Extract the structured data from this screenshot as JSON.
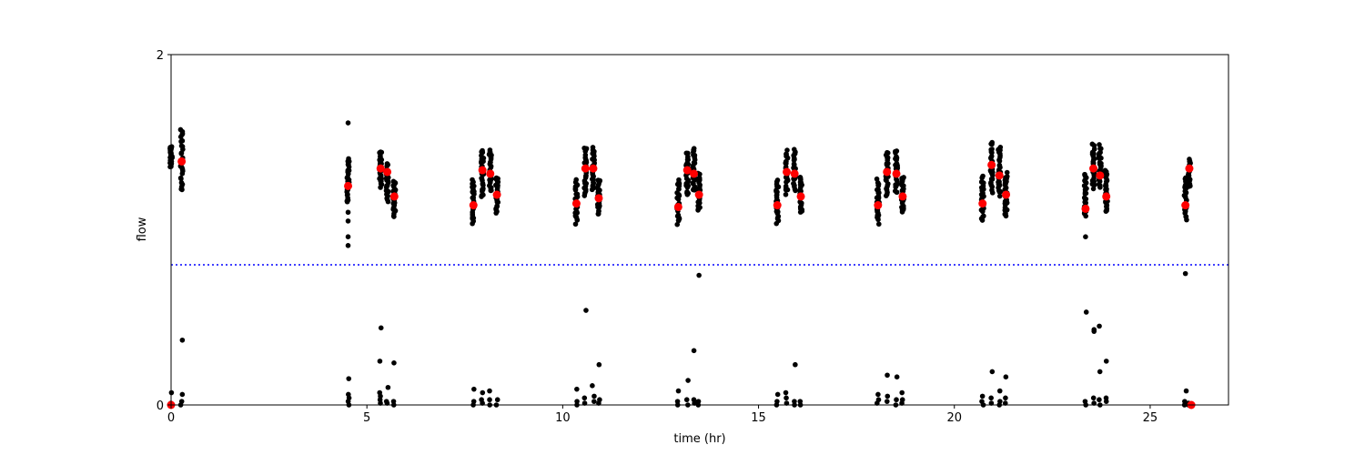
{
  "chart_data": {
    "type": "scatter",
    "xlabel": "time (hr)",
    "ylabel": "flow",
    "xlim": [
      0,
      27
    ],
    "ylim": [
      0,
      2
    ],
    "x_ticks": [
      0,
      5,
      10,
      15,
      20,
      25
    ],
    "y_ticks": [
      0,
      2
    ],
    "grid": false,
    "threshold_line": {
      "y": 0.8,
      "style": "dotted",
      "color": "#0000ff"
    },
    "colors": {
      "raw": "#000000",
      "mean": "#ff0000",
      "threshold": "#0000ff"
    },
    "clusters": [
      {
        "x": 0.0,
        "y": 1.42,
        "spread": 0.06,
        "low": [
          0.0,
          0.01,
          0.07
        ],
        "mean": 0.0
      },
      {
        "x": 0.27,
        "y": 1.4,
        "spread": 0.18,
        "low": [
          0.0,
          0.02,
          0.06,
          0.37
        ],
        "mean": 1.39
      },
      {
        "x": 4.52,
        "y": 1.28,
        "spread": 0.12,
        "low": [
          0.0,
          0.02,
          0.04,
          0.06,
          0.15
        ],
        "high": [
          1.61,
          0.91,
          0.96,
          1.05,
          1.1
        ],
        "mean": 1.25
      },
      {
        "x": 5.35,
        "y": 1.35,
        "spread": 0.1,
        "low": [
          0.01,
          0.03,
          0.05,
          0.07,
          0.25,
          0.44
        ],
        "mean": 1.35
      },
      {
        "x": 5.52,
        "y": 1.27,
        "spread": 0.1,
        "low": [
          0.01,
          0.02,
          0.1
        ],
        "mean": 1.33
      },
      {
        "x": 5.7,
        "y": 1.18,
        "spread": 0.1,
        "low": [
          0.0,
          0.02,
          0.24
        ],
        "mean": 1.19
      },
      {
        "x": 7.72,
        "y": 1.16,
        "spread": 0.12,
        "low": [
          0.0,
          0.02,
          0.09
        ],
        "mean": 1.14
      },
      {
        "x": 7.95,
        "y": 1.32,
        "spread": 0.14,
        "low": [
          0.01,
          0.03,
          0.07
        ],
        "mean": 1.34
      },
      {
        "x": 8.15,
        "y": 1.34,
        "spread": 0.12,
        "low": [
          0.0,
          0.03,
          0.08
        ],
        "mean": 1.32
      },
      {
        "x": 8.32,
        "y": 1.2,
        "spread": 0.1,
        "low": [
          0.0,
          0.03
        ],
        "mean": 1.2
      },
      {
        "x": 10.35,
        "y": 1.16,
        "spread": 0.12,
        "low": [
          0.0,
          0.02,
          0.09
        ],
        "mean": 1.15
      },
      {
        "x": 10.58,
        "y": 1.33,
        "spread": 0.14,
        "low": [
          0.01,
          0.04,
          0.54
        ],
        "mean": 1.35
      },
      {
        "x": 10.78,
        "y": 1.35,
        "spread": 0.12,
        "low": [
          0.02,
          0.05,
          0.11
        ],
        "mean": 1.35
      },
      {
        "x": 10.92,
        "y": 1.19,
        "spread": 0.1,
        "low": [
          0.01,
          0.03,
          0.23
        ],
        "mean": 1.18
      },
      {
        "x": 12.95,
        "y": 1.16,
        "spread": 0.12,
        "low": [
          0.0,
          0.02,
          0.08
        ],
        "mean": 1.13
      },
      {
        "x": 13.18,
        "y": 1.32,
        "spread": 0.12,
        "low": [
          0.0,
          0.03,
          0.14
        ],
        "mean": 1.34
      },
      {
        "x": 13.35,
        "y": 1.34,
        "spread": 0.12,
        "low": [
          0.01,
          0.03,
          0.31
        ],
        "mean": 1.32
      },
      {
        "x": 13.48,
        "y": 1.22,
        "spread": 0.1,
        "low": [
          0.0,
          0.02
        ],
        "high": [
          0.74
        ],
        "mean": 1.2
      },
      {
        "x": 15.48,
        "y": 1.16,
        "spread": 0.12,
        "low": [
          0.0,
          0.02,
          0.06
        ],
        "mean": 1.14
      },
      {
        "x": 15.72,
        "y": 1.33,
        "spread": 0.12,
        "low": [
          0.01,
          0.04,
          0.07
        ],
        "mean": 1.33
      },
      {
        "x": 15.92,
        "y": 1.34,
        "spread": 0.12,
        "low": [
          0.0,
          0.02,
          0.23
        ],
        "mean": 1.32
      },
      {
        "x": 16.08,
        "y": 1.2,
        "spread": 0.1,
        "low": [
          0.0,
          0.02
        ],
        "mean": 1.19
      },
      {
        "x": 18.05,
        "y": 1.16,
        "spread": 0.12,
        "low": [
          0.01,
          0.03,
          0.06
        ],
        "mean": 1.14
      },
      {
        "x": 18.28,
        "y": 1.32,
        "spread": 0.12,
        "low": [
          0.02,
          0.05,
          0.17
        ],
        "mean": 1.33
      },
      {
        "x": 18.52,
        "y": 1.33,
        "spread": 0.12,
        "low": [
          0.0,
          0.03,
          0.16
        ],
        "mean": 1.32
      },
      {
        "x": 18.68,
        "y": 1.2,
        "spread": 0.1,
        "low": [
          0.01,
          0.03,
          0.07
        ],
        "mean": 1.19
      },
      {
        "x": 20.72,
        "y": 1.18,
        "spread": 0.12,
        "low": [
          0.0,
          0.02,
          0.05
        ],
        "mean": 1.15
      },
      {
        "x": 20.95,
        "y": 1.36,
        "spread": 0.14,
        "low": [
          0.01,
          0.04,
          0.19
        ],
        "mean": 1.37
      },
      {
        "x": 21.15,
        "y": 1.34,
        "spread": 0.14,
        "low": [
          0.0,
          0.02,
          0.08
        ],
        "mean": 1.31
      },
      {
        "x": 21.32,
        "y": 1.2,
        "spread": 0.12,
        "low": [
          0.01,
          0.04,
          0.16
        ],
        "mean": 1.2
      },
      {
        "x": 23.35,
        "y": 1.2,
        "spread": 0.12,
        "low": [
          0.0,
          0.02,
          0.53
        ],
        "high": [
          0.96
        ],
        "mean": 1.12
      },
      {
        "x": 23.55,
        "y": 1.36,
        "spread": 0.12,
        "low": [
          0.01,
          0.04,
          0.43,
          0.42
        ],
        "mean": 1.35
      },
      {
        "x": 23.72,
        "y": 1.36,
        "spread": 0.12,
        "low": [
          0.0,
          0.03,
          0.45,
          0.19
        ],
        "mean": 1.31
      },
      {
        "x": 23.88,
        "y": 1.22,
        "spread": 0.12,
        "low": [
          0.02,
          0.04,
          0.25
        ],
        "mean": 1.19
      },
      {
        "x": 25.9,
        "y": 1.18,
        "spread": 0.12,
        "low": [
          0.0,
          0.02,
          0.08
        ],
        "high": [
          0.75
        ],
        "mean": 1.14
      },
      {
        "x": 26.0,
        "y": 1.32,
        "spread": 0.08,
        "low": [
          0.0,
          0.01
        ],
        "mean": 1.35
      }
    ],
    "extra_means": [
      {
        "x": 26.05,
        "y": 0.0
      }
    ]
  }
}
